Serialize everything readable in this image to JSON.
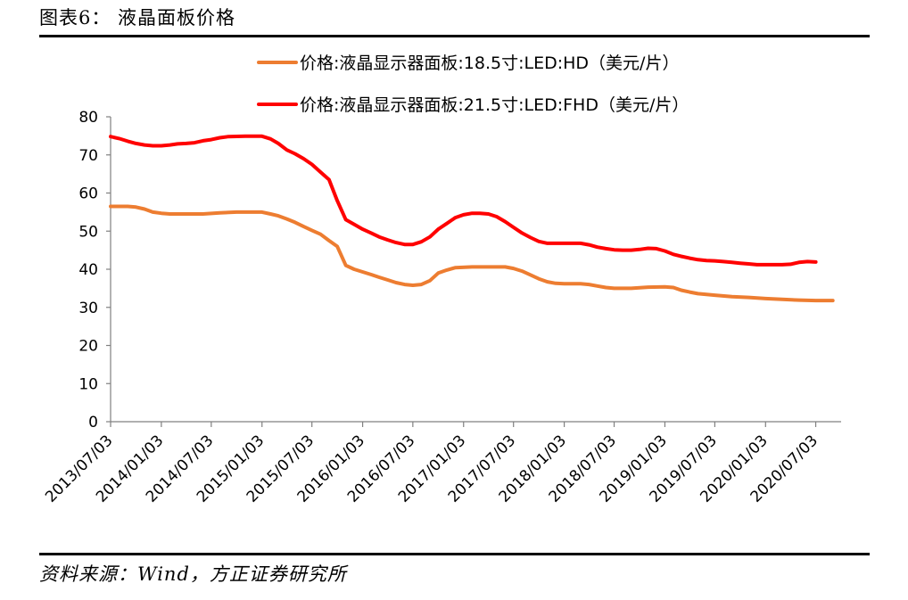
{
  "figure": {
    "title": "图表6： 液晶面板价格",
    "source": "资料来源：Wind，方正证券研究所"
  },
  "chart_data": {
    "type": "line",
    "title": "",
    "xlabel": "",
    "ylabel": "",
    "ylim": [
      0,
      80
    ],
    "yticks": [
      0,
      10,
      20,
      30,
      40,
      50,
      60,
      70,
      80
    ],
    "xlim": [
      "2013/07/03",
      "2020/10/03"
    ],
    "xticks": [
      "2013/07/03",
      "2014/01/03",
      "2014/07/03",
      "2015/01/03",
      "2015/07/03",
      "2016/01/03",
      "2016/07/03",
      "2017/01/03",
      "2017/07/03",
      "2018/01/03",
      "2018/07/03",
      "2019/01/03",
      "2019/07/03",
      "2020/01/03",
      "2020/07/03"
    ],
    "grid": false,
    "legend_position": "top",
    "series": [
      {
        "name": "价格:液晶显示器面板:18.5寸:LED:HD（美元/片）",
        "color": "#ED7D31",
        "points": [
          [
            "2013/07/03",
            56.5
          ],
          [
            "2013/09/03",
            56.5
          ],
          [
            "2013/10/03",
            56.3
          ],
          [
            "2013/11/03",
            55.8
          ],
          [
            "2013/12/03",
            55.0
          ],
          [
            "2014/01/03",
            54.7
          ],
          [
            "2014/02/03",
            54.5
          ],
          [
            "2014/04/03",
            54.5
          ],
          [
            "2014/06/03",
            54.5
          ],
          [
            "2014/08/03",
            54.8
          ],
          [
            "2014/10/03",
            55.0
          ],
          [
            "2014/12/03",
            55.0
          ],
          [
            "2015/01/03",
            55.0
          ],
          [
            "2015/02/03",
            54.5
          ],
          [
            "2015/03/03",
            54.0
          ],
          [
            "2015/04/03",
            53.2
          ],
          [
            "2015/05/03",
            52.3
          ],
          [
            "2015/06/03",
            51.2
          ],
          [
            "2015/07/03",
            50.2
          ],
          [
            "2015/08/03",
            49.2
          ],
          [
            "2015/09/03",
            47.5
          ],
          [
            "2015/10/03",
            46.0
          ],
          [
            "2015/11/03",
            41.0
          ],
          [
            "2015/12/03",
            40.0
          ],
          [
            "2016/01/03",
            39.3
          ],
          [
            "2016/02/03",
            38.6
          ],
          [
            "2016/03/03",
            37.9
          ],
          [
            "2016/04/03",
            37.2
          ],
          [
            "2016/05/03",
            36.5
          ],
          [
            "2016/06/03",
            36.0
          ],
          [
            "2016/07/03",
            35.8
          ],
          [
            "2016/08/03",
            36.0
          ],
          [
            "2016/09/03",
            37.0
          ],
          [
            "2016/10/03",
            39.0
          ],
          [
            "2016/11/03",
            39.8
          ],
          [
            "2016/12/03",
            40.4
          ],
          [
            "2017/02/03",
            40.6
          ],
          [
            "2017/04/03",
            40.6
          ],
          [
            "2017/06/03",
            40.6
          ],
          [
            "2017/07/03",
            40.2
          ],
          [
            "2017/08/03",
            39.5
          ],
          [
            "2017/09/03",
            38.5
          ],
          [
            "2017/10/03",
            37.5
          ],
          [
            "2017/11/03",
            36.7
          ],
          [
            "2017/12/03",
            36.3
          ],
          [
            "2018/01/03",
            36.2
          ],
          [
            "2018/03/03",
            36.2
          ],
          [
            "2018/04/03",
            36.0
          ],
          [
            "2018/05/03",
            35.6
          ],
          [
            "2018/06/03",
            35.2
          ],
          [
            "2018/07/03",
            35.0
          ],
          [
            "2018/09/03",
            35.0
          ],
          [
            "2018/11/03",
            35.3
          ],
          [
            "2019/01/03",
            35.4
          ],
          [
            "2019/02/03",
            35.2
          ],
          [
            "2019/03/03",
            34.5
          ],
          [
            "2019/04/03",
            34.0
          ],
          [
            "2019/05/03",
            33.6
          ],
          [
            "2019/06/03",
            33.4
          ],
          [
            "2019/07/03",
            33.2
          ],
          [
            "2019/09/03",
            32.8
          ],
          [
            "2019/11/03",
            32.6
          ],
          [
            "2020/01/03",
            32.3
          ],
          [
            "2020/03/03",
            32.1
          ],
          [
            "2020/05/03",
            31.9
          ],
          [
            "2020/07/03",
            31.8
          ],
          [
            "2020/08/03",
            31.8
          ],
          [
            "2020/09/03",
            31.8
          ]
        ]
      },
      {
        "name": "价格:液晶显示器面板:21.5寸:LED:FHD（美元/片）",
        "color": "#FF0000",
        "points": [
          [
            "2013/07/03",
            74.8
          ],
          [
            "2013/08/03",
            74.3
          ],
          [
            "2013/09/03",
            73.6
          ],
          [
            "2013/10/03",
            73.0
          ],
          [
            "2013/11/03",
            72.6
          ],
          [
            "2013/12/03",
            72.4
          ],
          [
            "2014/01/03",
            72.4
          ],
          [
            "2014/02/03",
            72.6
          ],
          [
            "2014/03/03",
            72.9
          ],
          [
            "2014/04/03",
            73.0
          ],
          [
            "2014/05/03",
            73.2
          ],
          [
            "2014/06/03",
            73.7
          ],
          [
            "2014/07/03",
            74.0
          ],
          [
            "2014/08/03",
            74.5
          ],
          [
            "2014/09/03",
            74.8
          ],
          [
            "2014/11/03",
            74.9
          ],
          [
            "2015/01/03",
            74.9
          ],
          [
            "2015/02/03",
            74.2
          ],
          [
            "2015/03/03",
            73.0
          ],
          [
            "2015/04/03",
            71.3
          ],
          [
            "2015/05/03",
            70.3
          ],
          [
            "2015/06/03",
            69.0
          ],
          [
            "2015/07/03",
            67.5
          ],
          [
            "2015/08/03",
            65.5
          ],
          [
            "2015/09/03",
            63.5
          ],
          [
            "2015/10/03",
            58.0
          ],
          [
            "2015/11/03",
            53.0
          ],
          [
            "2015/12/03",
            51.8
          ],
          [
            "2016/01/03",
            50.5
          ],
          [
            "2016/02/03",
            49.5
          ],
          [
            "2016/03/03",
            48.5
          ],
          [
            "2016/04/03",
            47.7
          ],
          [
            "2016/05/03",
            47.0
          ],
          [
            "2016/06/03",
            46.5
          ],
          [
            "2016/07/03",
            46.5
          ],
          [
            "2016/08/03",
            47.2
          ],
          [
            "2016/09/03",
            48.5
          ],
          [
            "2016/10/03",
            50.5
          ],
          [
            "2016/11/03",
            52.0
          ],
          [
            "2016/12/03",
            53.5
          ],
          [
            "2017/01/03",
            54.3
          ],
          [
            "2017/02/03",
            54.7
          ],
          [
            "2017/03/03",
            54.7
          ],
          [
            "2017/04/03",
            54.5
          ],
          [
            "2017/05/03",
            53.8
          ],
          [
            "2017/06/03",
            52.5
          ],
          [
            "2017/07/03",
            51.0
          ],
          [
            "2017/08/03",
            49.5
          ],
          [
            "2017/09/03",
            48.3
          ],
          [
            "2017/10/03",
            47.3
          ],
          [
            "2017/11/03",
            46.8
          ],
          [
            "2017/12/03",
            46.8
          ],
          [
            "2018/03/03",
            46.8
          ],
          [
            "2018/04/03",
            46.4
          ],
          [
            "2018/05/03",
            45.8
          ],
          [
            "2018/06/03",
            45.4
          ],
          [
            "2018/07/03",
            45.1
          ],
          [
            "2018/08/03",
            45.0
          ],
          [
            "2018/09/03",
            45.0
          ],
          [
            "2018/10/03",
            45.2
          ],
          [
            "2018/11/03",
            45.5
          ],
          [
            "2018/12/03",
            45.4
          ],
          [
            "2019/01/03",
            44.8
          ],
          [
            "2019/02/03",
            43.9
          ],
          [
            "2019/03/03",
            43.4
          ],
          [
            "2019/04/03",
            42.9
          ],
          [
            "2019/05/03",
            42.5
          ],
          [
            "2019/06/03",
            42.3
          ],
          [
            "2019/07/03",
            42.2
          ],
          [
            "2019/08/03",
            42.0
          ],
          [
            "2019/09/03",
            41.8
          ],
          [
            "2019/10/03",
            41.6
          ],
          [
            "2019/11/03",
            41.4
          ],
          [
            "2019/12/03",
            41.2
          ],
          [
            "2020/03/03",
            41.2
          ],
          [
            "2020/04/03",
            41.3
          ],
          [
            "2020/05/03",
            41.8
          ],
          [
            "2020/06/03",
            42.0
          ],
          [
            "2020/07/03",
            41.9
          ]
        ]
      }
    ]
  }
}
